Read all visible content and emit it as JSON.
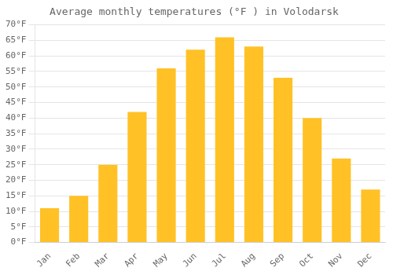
{
  "chart_data": {
    "type": "bar",
    "title": "Average monthly temperatures (°F ) in Volodarsk",
    "categories": [
      "Jan",
      "Feb",
      "Mar",
      "Apr",
      "May",
      "Jun",
      "Jul",
      "Aug",
      "Sep",
      "Oct",
      "Nov",
      "Dec"
    ],
    "values": [
      11,
      15,
      25,
      42,
      56,
      62,
      66,
      63,
      53,
      40,
      27,
      17
    ],
    "color": "#FFC125",
    "ylim": [
      0,
      70
    ],
    "yticks": [
      {
        "value": 0,
        "label": "0°F"
      },
      {
        "value": 5,
        "label": "5°F"
      },
      {
        "value": 10,
        "label": "10°F"
      },
      {
        "value": 15,
        "label": "15°F"
      },
      {
        "value": 20,
        "label": "20°F"
      },
      {
        "value": 25,
        "label": "25°F"
      },
      {
        "value": 30,
        "label": "30°F"
      },
      {
        "value": 35,
        "label": "35°F"
      },
      {
        "value": 40,
        "label": "40°F"
      },
      {
        "value": 45,
        "label": "45°F"
      },
      {
        "value": 50,
        "label": "50°F"
      },
      {
        "value": 55,
        "label": "55°F"
      },
      {
        "value": 60,
        "label": "60°F"
      },
      {
        "value": 65,
        "label": "65°F"
      },
      {
        "value": 70,
        "label": "70°F"
      }
    ],
    "grid": true
  }
}
